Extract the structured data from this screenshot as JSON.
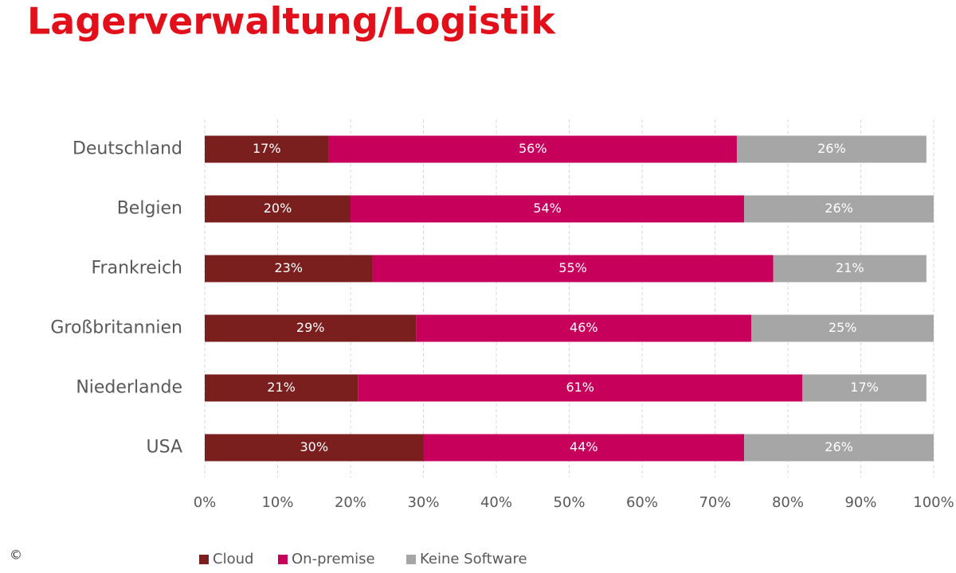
{
  "title": "Lagerverwaltung/Logistik",
  "copyright": "©",
  "chart_data": {
    "type": "stacked-bar-horizontal",
    "categories": [
      "Deutschland",
      "Belgien",
      "Frankreich",
      "Großbritannien",
      "Niederlande",
      "USA"
    ],
    "series": [
      {
        "name": "Cloud",
        "color": "#7b1e1e",
        "values": [
          17,
          20,
          23,
          29,
          21,
          30
        ],
        "value_labels": [
          "17%",
          "20%",
          "23%",
          "29%",
          "21%",
          "30%"
        ]
      },
      {
        "name": "On-premise",
        "color": "#c7005b",
        "values": [
          56,
          54,
          55,
          46,
          61,
          44
        ],
        "value_labels": [
          "56%",
          "54%",
          "55%",
          "46%",
          "61%",
          "44%"
        ]
      },
      {
        "name": "Keine Software",
        "color": "#a6a6a6",
        "values": [
          26,
          26,
          21,
          25,
          17,
          26
        ],
        "value_labels": [
          "26%",
          "26%",
          "21%",
          "25%",
          "17%",
          "26%"
        ]
      }
    ],
    "xlim": [
      0,
      100
    ],
    "xticks": [
      {
        "value": 0,
        "label": "0%"
      },
      {
        "value": 10,
        "label": "10%"
      },
      {
        "value": 20,
        "label": "20%"
      },
      {
        "value": 30,
        "label": "30%"
      },
      {
        "value": 40,
        "label": "40%"
      },
      {
        "value": 50,
        "label": "50%"
      },
      {
        "value": 60,
        "label": "60%"
      },
      {
        "value": 70,
        "label": "70%"
      },
      {
        "value": 80,
        "label": "80%"
      },
      {
        "value": 90,
        "label": "90%"
      },
      {
        "value": 100,
        "label": "100%"
      }
    ],
    "grid": true,
    "legend": "bottom"
  }
}
